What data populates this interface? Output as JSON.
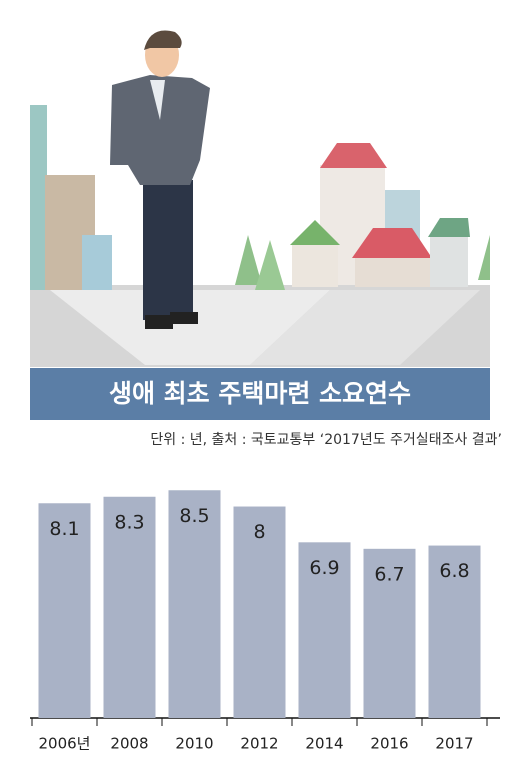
{
  "chart_data": {
    "type": "bar",
    "title": "생애 최초 주택마련 소요연수",
    "subtitle": "단위 : 년, 출처 : 국토교통부 ‘2017년도 주거실태조사 결과’",
    "categories": [
      "2006년",
      "2008",
      "2010",
      "2012",
      "2014",
      "2016",
      "2017"
    ],
    "values": [
      8.1,
      8.3,
      8.5,
      8,
      6.9,
      6.7,
      6.8
    ],
    "color": "#a9b2c6",
    "ylim": [
      1.5,
      8.6
    ]
  }
}
